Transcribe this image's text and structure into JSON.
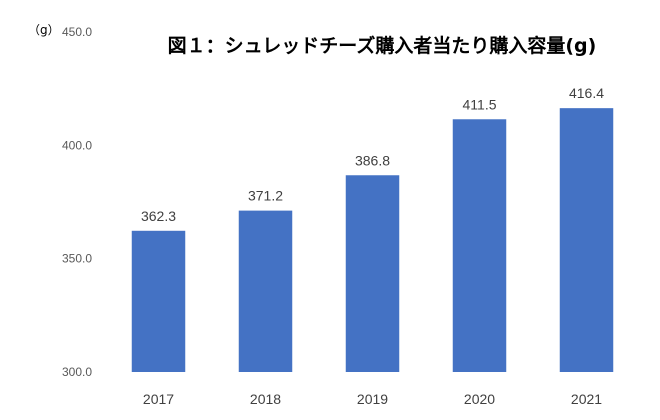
{
  "chart_data": {
    "type": "bar",
    "title": "図１：シュレッドチーズ購入者当たり購入容量(g)",
    "ylabel": "（g）",
    "xlabel": "",
    "categories": [
      "2017",
      "2018",
      "2019",
      "2020",
      "2021"
    ],
    "values": [
      362.3,
      371.2,
      386.8,
      411.5,
      416.4
    ],
    "value_labels": [
      "362.3",
      "371.2",
      "386.8",
      "411.5",
      "416.4"
    ],
    "ylim": [
      300.0,
      450.0
    ],
    "yticks": [
      300.0,
      350.0,
      400.0,
      450.0
    ],
    "ytick_labels": [
      "300.0",
      "350.0",
      "400.0",
      "450.0"
    ],
    "grid": false,
    "legend": "none",
    "bar_color": "#4472C4"
  }
}
